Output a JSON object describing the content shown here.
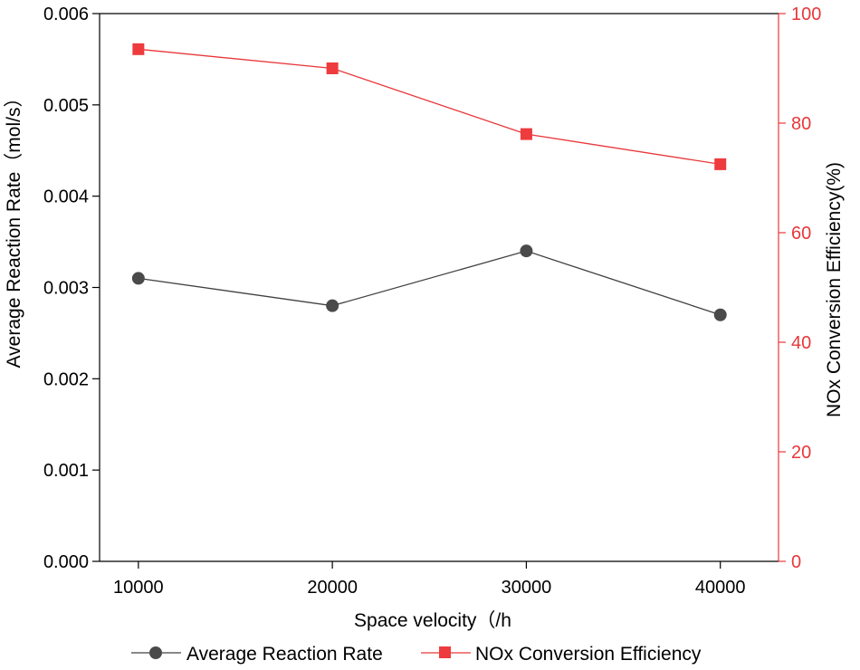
{
  "chart_data": {
    "type": "line",
    "x": [
      10000,
      20000,
      30000,
      40000
    ],
    "x_tick_labels": [
      "10000",
      "20000",
      "30000",
      "40000"
    ],
    "xlabel": "Space velocity（/h",
    "xlim": [
      8000,
      43000
    ],
    "series": [
      {
        "name": "Average Reaction Rate",
        "axis": "left",
        "marker": "circle",
        "color": "#404040",
        "marker_color": "#4a4a4a",
        "values": [
          0.0031,
          0.0028,
          0.0034,
          0.0027
        ]
      },
      {
        "name": "NOx Conversion Efficiency",
        "axis": "right",
        "marker": "square",
        "color": "#e8373a",
        "marker_color": "#ee3b3e",
        "values": [
          93.5,
          90.0,
          78.0,
          72.5
        ]
      }
    ],
    "y_left": {
      "label": "Average Reaction Rate（mol/s）",
      "ylim": [
        0,
        0.006
      ],
      "ticks": [
        0.0,
        0.001,
        0.002,
        0.003,
        0.004,
        0.005,
        0.006
      ],
      "tick_labels": [
        "0.000",
        "0.001",
        "0.002",
        "0.003",
        "0.004",
        "0.005",
        "0.006"
      ],
      "color": "#000000"
    },
    "y_right": {
      "label": "NOx Conversion Efficiency(%)",
      "ylim": [
        0,
        100
      ],
      "ticks": [
        0,
        20,
        40,
        60,
        80,
        100
      ],
      "tick_labels": [
        "0",
        "20",
        "40",
        "60",
        "80",
        "100"
      ],
      "color": "#e8373a"
    },
    "grid": false,
    "legend_position": "bottom"
  }
}
